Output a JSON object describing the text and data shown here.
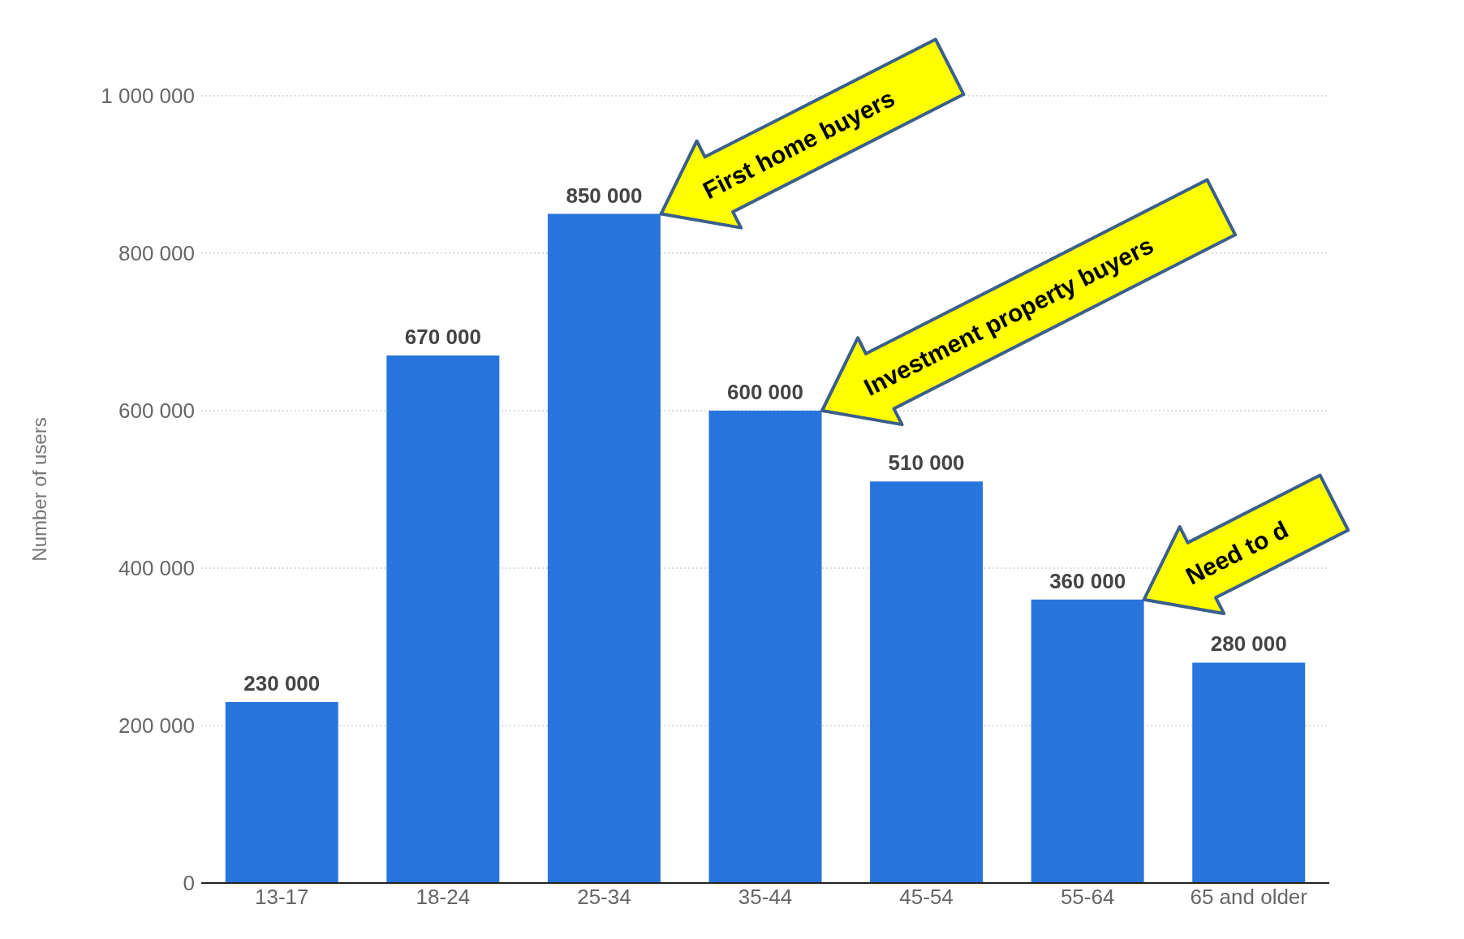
{
  "chart_data": {
    "type": "bar",
    "ylabel": "Number of users",
    "categories": [
      "13-17",
      "18-24",
      "25-34",
      "35-44",
      "45-54",
      "55-64",
      "65 and older"
    ],
    "values": [
      230000,
      670000,
      850000,
      600000,
      510000,
      360000,
      280000
    ],
    "color": "#2876dd",
    "ylim": [
      0,
      1000000
    ],
    "yticks": [
      0,
      200000,
      400000,
      600000,
      800000,
      1000000
    ],
    "grid": "y",
    "data_labels": true,
    "annotations": [
      "First home buyers",
      "Investment property buyers",
      "Need to d"
    ]
  }
}
